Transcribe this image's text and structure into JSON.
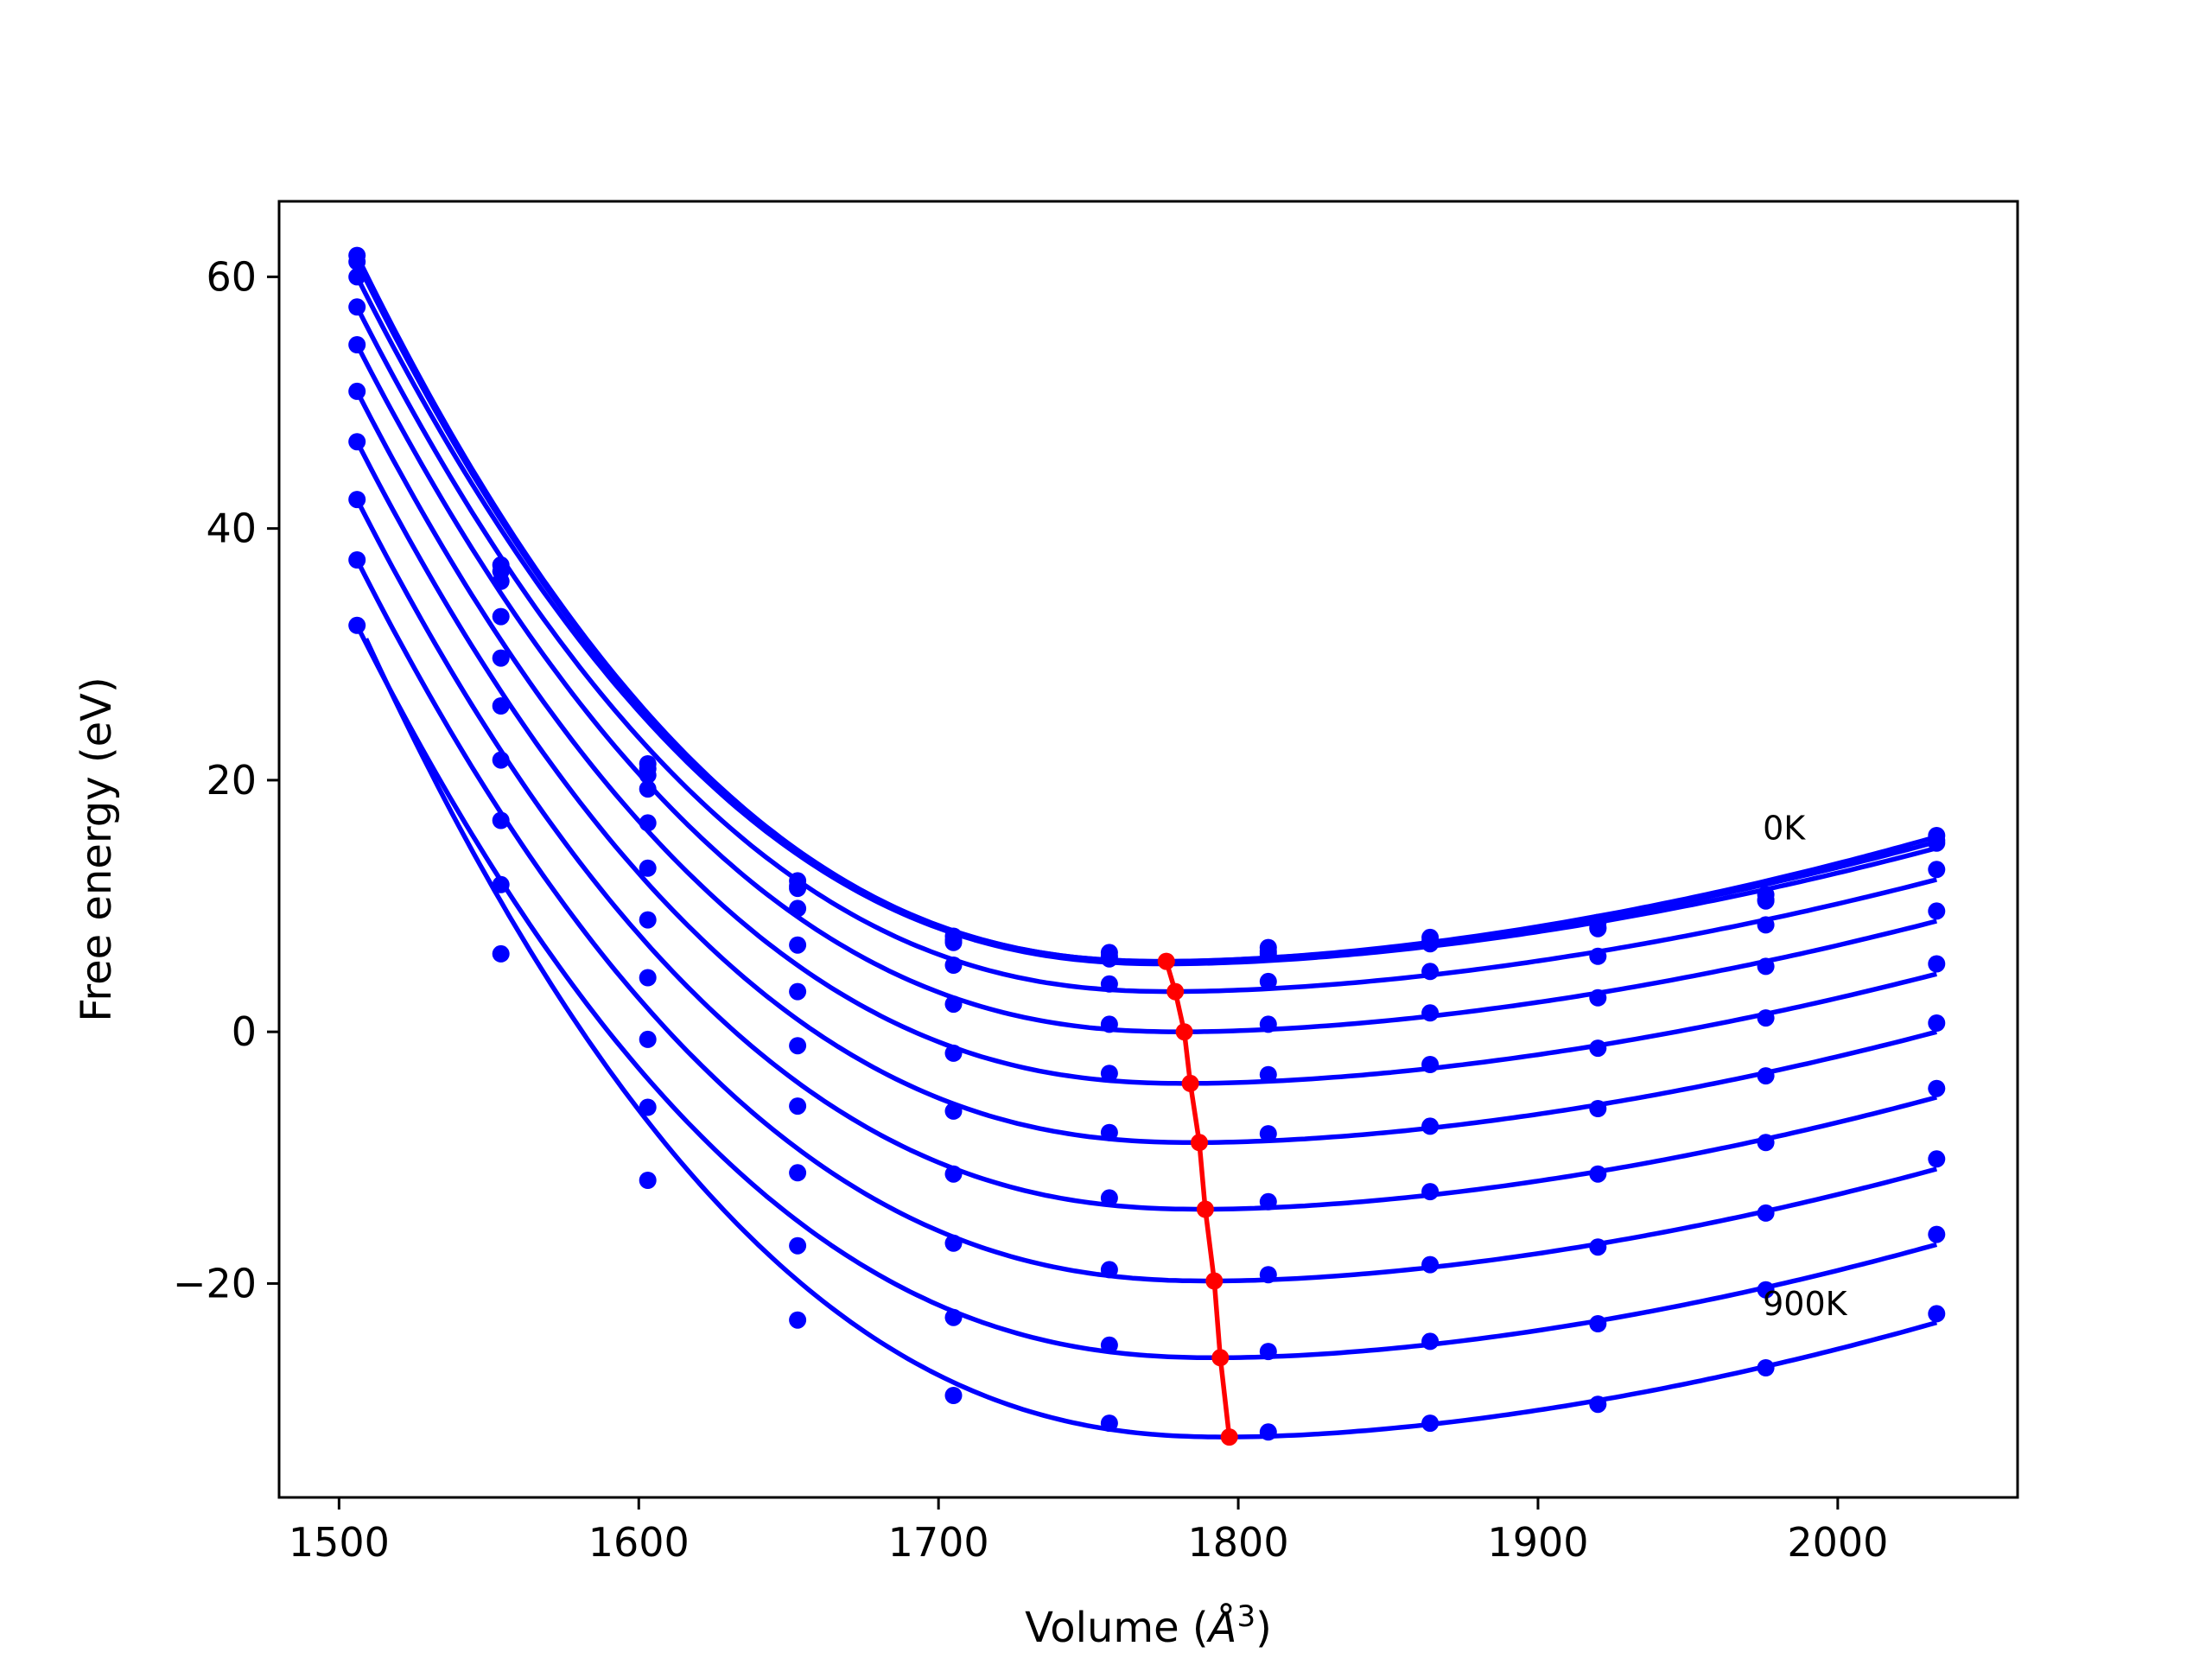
{
  "chart_data": {
    "type": "line",
    "xlabel": "Volume (",
    "xlabel_symbol": "Å",
    "xlabel_exp": "3",
    "xlabel_close": ")",
    "ylabel": "Free energy (eV)",
    "xlim": [
      1480,
      2060
    ],
    "ylim": [
      -37,
      66
    ],
    "xticks": [
      1500,
      1600,
      1700,
      1800,
      1900,
      2000
    ],
    "yticks": [
      -20,
      0,
      20,
      40,
      60
    ],
    "ytick_labels": [
      "−20",
      "0",
      "20",
      "40",
      "60"
    ],
    "grid": false,
    "annotations": [
      {
        "text": "0K",
        "x": 1975,
        "y": 15.3
      },
      {
        "text": "900K",
        "x": 1975,
        "y": -22.5
      }
    ],
    "sample_volumes": [
      1506,
      1554,
      1603,
      1653,
      1705,
      1757,
      1810,
      1864,
      1920,
      1976,
      2033
    ],
    "series_color": "#0000ff",
    "min_path_color": "#ff0000",
    "series": [
      {
        "Vmin": 1776,
        "Fmin": 5.6,
        "left": 61.7,
        "right": 15.5,
        "points": [
          61.7,
          37.1,
          21.3,
          12.0,
          7.6,
          6.3,
          6.7,
          7.5,
          8.7,
          10.9,
          15.6
        ]
      },
      {
        "Vmin": 1776,
        "Fmin": 5.6,
        "left": 61.2,
        "right": 15.1,
        "points": [
          61.2,
          36.6,
          20.9,
          11.6,
          7.3,
          6.0,
          6.4,
          7.2,
          8.3,
          10.5,
          15.2
        ]
      },
      {
        "Vmin": 1777,
        "Fmin": 5.4,
        "left": 60.0,
        "right": 14.6,
        "points": [
          60.0,
          35.8,
          20.4,
          11.4,
          7.1,
          5.8,
          6.2,
          7.0,
          8.2,
          10.4,
          15.0
        ]
      },
      {
        "Vmin": 1779,
        "Fmin": 3.2,
        "left": 57.6,
        "right": 12.1,
        "points": [
          57.6,
          33.0,
          19.3,
          9.8,
          5.3,
          3.8,
          4.0,
          4.8,
          6.0,
          8.5,
          12.9
        ]
      },
      {
        "Vmin": 1782,
        "Fmin": 0.0,
        "left": 54.6,
        "right": 8.8,
        "points": [
          54.6,
          29.7,
          16.6,
          6.9,
          2.2,
          0.6,
          0.6,
          1.5,
          2.7,
          5.2,
          9.6
        ]
      },
      {
        "Vmin": 1784,
        "Fmin": -4.1,
        "left": 50.9,
        "right": 4.6,
        "points": [
          50.9,
          25.9,
          13.0,
          3.2,
          -1.7,
          -3.3,
          -3.4,
          -2.6,
          -1.3,
          1.1,
          5.4
        ]
      },
      {
        "Vmin": 1787,
        "Fmin": -8.8,
        "left": 46.9,
        "right": 0.0,
        "points": [
          46.9,
          21.6,
          8.9,
          -1.1,
          -6.3,
          -8.0,
          -8.1,
          -7.5,
          -6.1,
          -3.5,
          0.7
        ]
      },
      {
        "Vmin": 1789,
        "Fmin": -14.1,
        "left": 42.3,
        "right": -5.2,
        "points": [
          42.3,
          16.8,
          4.3,
          -5.9,
          -11.3,
          -13.2,
          -13.5,
          -12.7,
          -11.3,
          -8.8,
          -4.5
        ]
      },
      {
        "Vmin": 1792,
        "Fmin": -19.8,
        "left": 37.5,
        "right": -10.9,
        "points": [
          37.5,
          11.7,
          -0.6,
          -11.2,
          -16.8,
          -18.9,
          -19.3,
          -18.5,
          -17.1,
          -14.4,
          -10.1
        ]
      },
      {
        "Vmin": 1794,
        "Fmin": -25.9,
        "left": 32.3,
        "right": -16.9,
        "points": [
          32.3,
          6.2,
          -6.0,
          -17.0,
          -22.7,
          -24.9,
          -25.4,
          -24.6,
          -23.2,
          -20.5,
          -16.1
        ]
      },
      {
        "Vmin": 1797,
        "Fmin": -32.2,
        "left": null,
        "right": -23.1,
        "points": [
          null,
          null,
          -11.8,
          -22.9,
          -28.9,
          -31.1,
          -31.8,
          -31.1,
          -29.6,
          -26.7,
          -22.4
        ]
      }
    ],
    "min_path": [
      {
        "V": 1776,
        "F": 5.6
      },
      {
        "V": 1779,
        "F": 3.2
      },
      {
        "V": 1782,
        "F": 0.0
      },
      {
        "V": 1784,
        "F": -4.1
      },
      {
        "V": 1787,
        "F": -8.8
      },
      {
        "V": 1789,
        "F": -14.1
      },
      {
        "V": 1792,
        "F": -19.8
      },
      {
        "V": 1794,
        "F": -25.9
      },
      {
        "V": 1797,
        "F": -32.2
      }
    ]
  }
}
